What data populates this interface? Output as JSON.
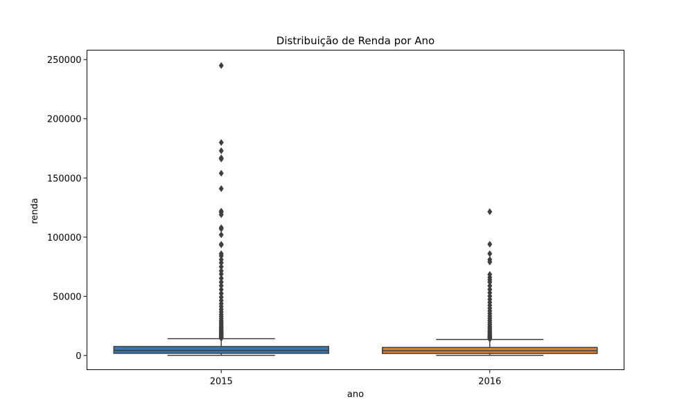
{
  "chart_data": {
    "type": "box",
    "title": "Distribuição de Renda por Ano",
    "xlabel": "ano",
    "ylabel": "renda",
    "ylim": [
      -12000,
      258000
    ],
    "yticks": [
      0,
      50000,
      100000,
      150000,
      200000,
      250000
    ],
    "yticklabels": [
      "0",
      "50000",
      "100000",
      "150000",
      "200000",
      "250000"
    ],
    "categories": [
      "2015",
      "2016"
    ],
    "grid": false,
    "legend": "none",
    "boxes": [
      {
        "category": "2015",
        "color": "#3a75ad",
        "whisker_low": 100,
        "q1": 1800,
        "median": 4300,
        "q3": 7600,
        "whisker_high": 14200,
        "outliers": [
          14500,
          15000,
          15600,
          16200,
          16900,
          17600,
          18400,
          19200,
          20100,
          21000,
          22000,
          23100,
          24200,
          25400,
          26600,
          27900,
          29300,
          31000,
          32800,
          34700,
          36800,
          39000,
          41300,
          43800,
          46500,
          49300,
          52400,
          55700,
          59000,
          62000,
          65300,
          68800,
          71500,
          75000,
          78300,
          81000,
          84200,
          86000,
          93500,
          94000,
          102000,
          107000,
          108000,
          119000,
          121000,
          122000,
          141000,
          154000,
          166000,
          167000,
          173000,
          180000,
          245000
        ]
      },
      {
        "category": "2016",
        "color": "#e1812c",
        "whisker_low": 100,
        "q1": 1700,
        "median": 4000,
        "q3": 6800,
        "whisker_high": 13600,
        "outliers": [
          13900,
          14500,
          15200,
          16000,
          16900,
          17900,
          19000,
          20200,
          21500,
          22900,
          24400,
          26000,
          27700,
          29500,
          31400,
          33400,
          35500,
          37700,
          40000,
          42400,
          44900,
          47500,
          50200,
          53000,
          55900,
          58900,
          62000,
          64000,
          66000,
          68500,
          79000,
          81000,
          86000,
          94000,
          121500
        ]
      }
    ]
  }
}
